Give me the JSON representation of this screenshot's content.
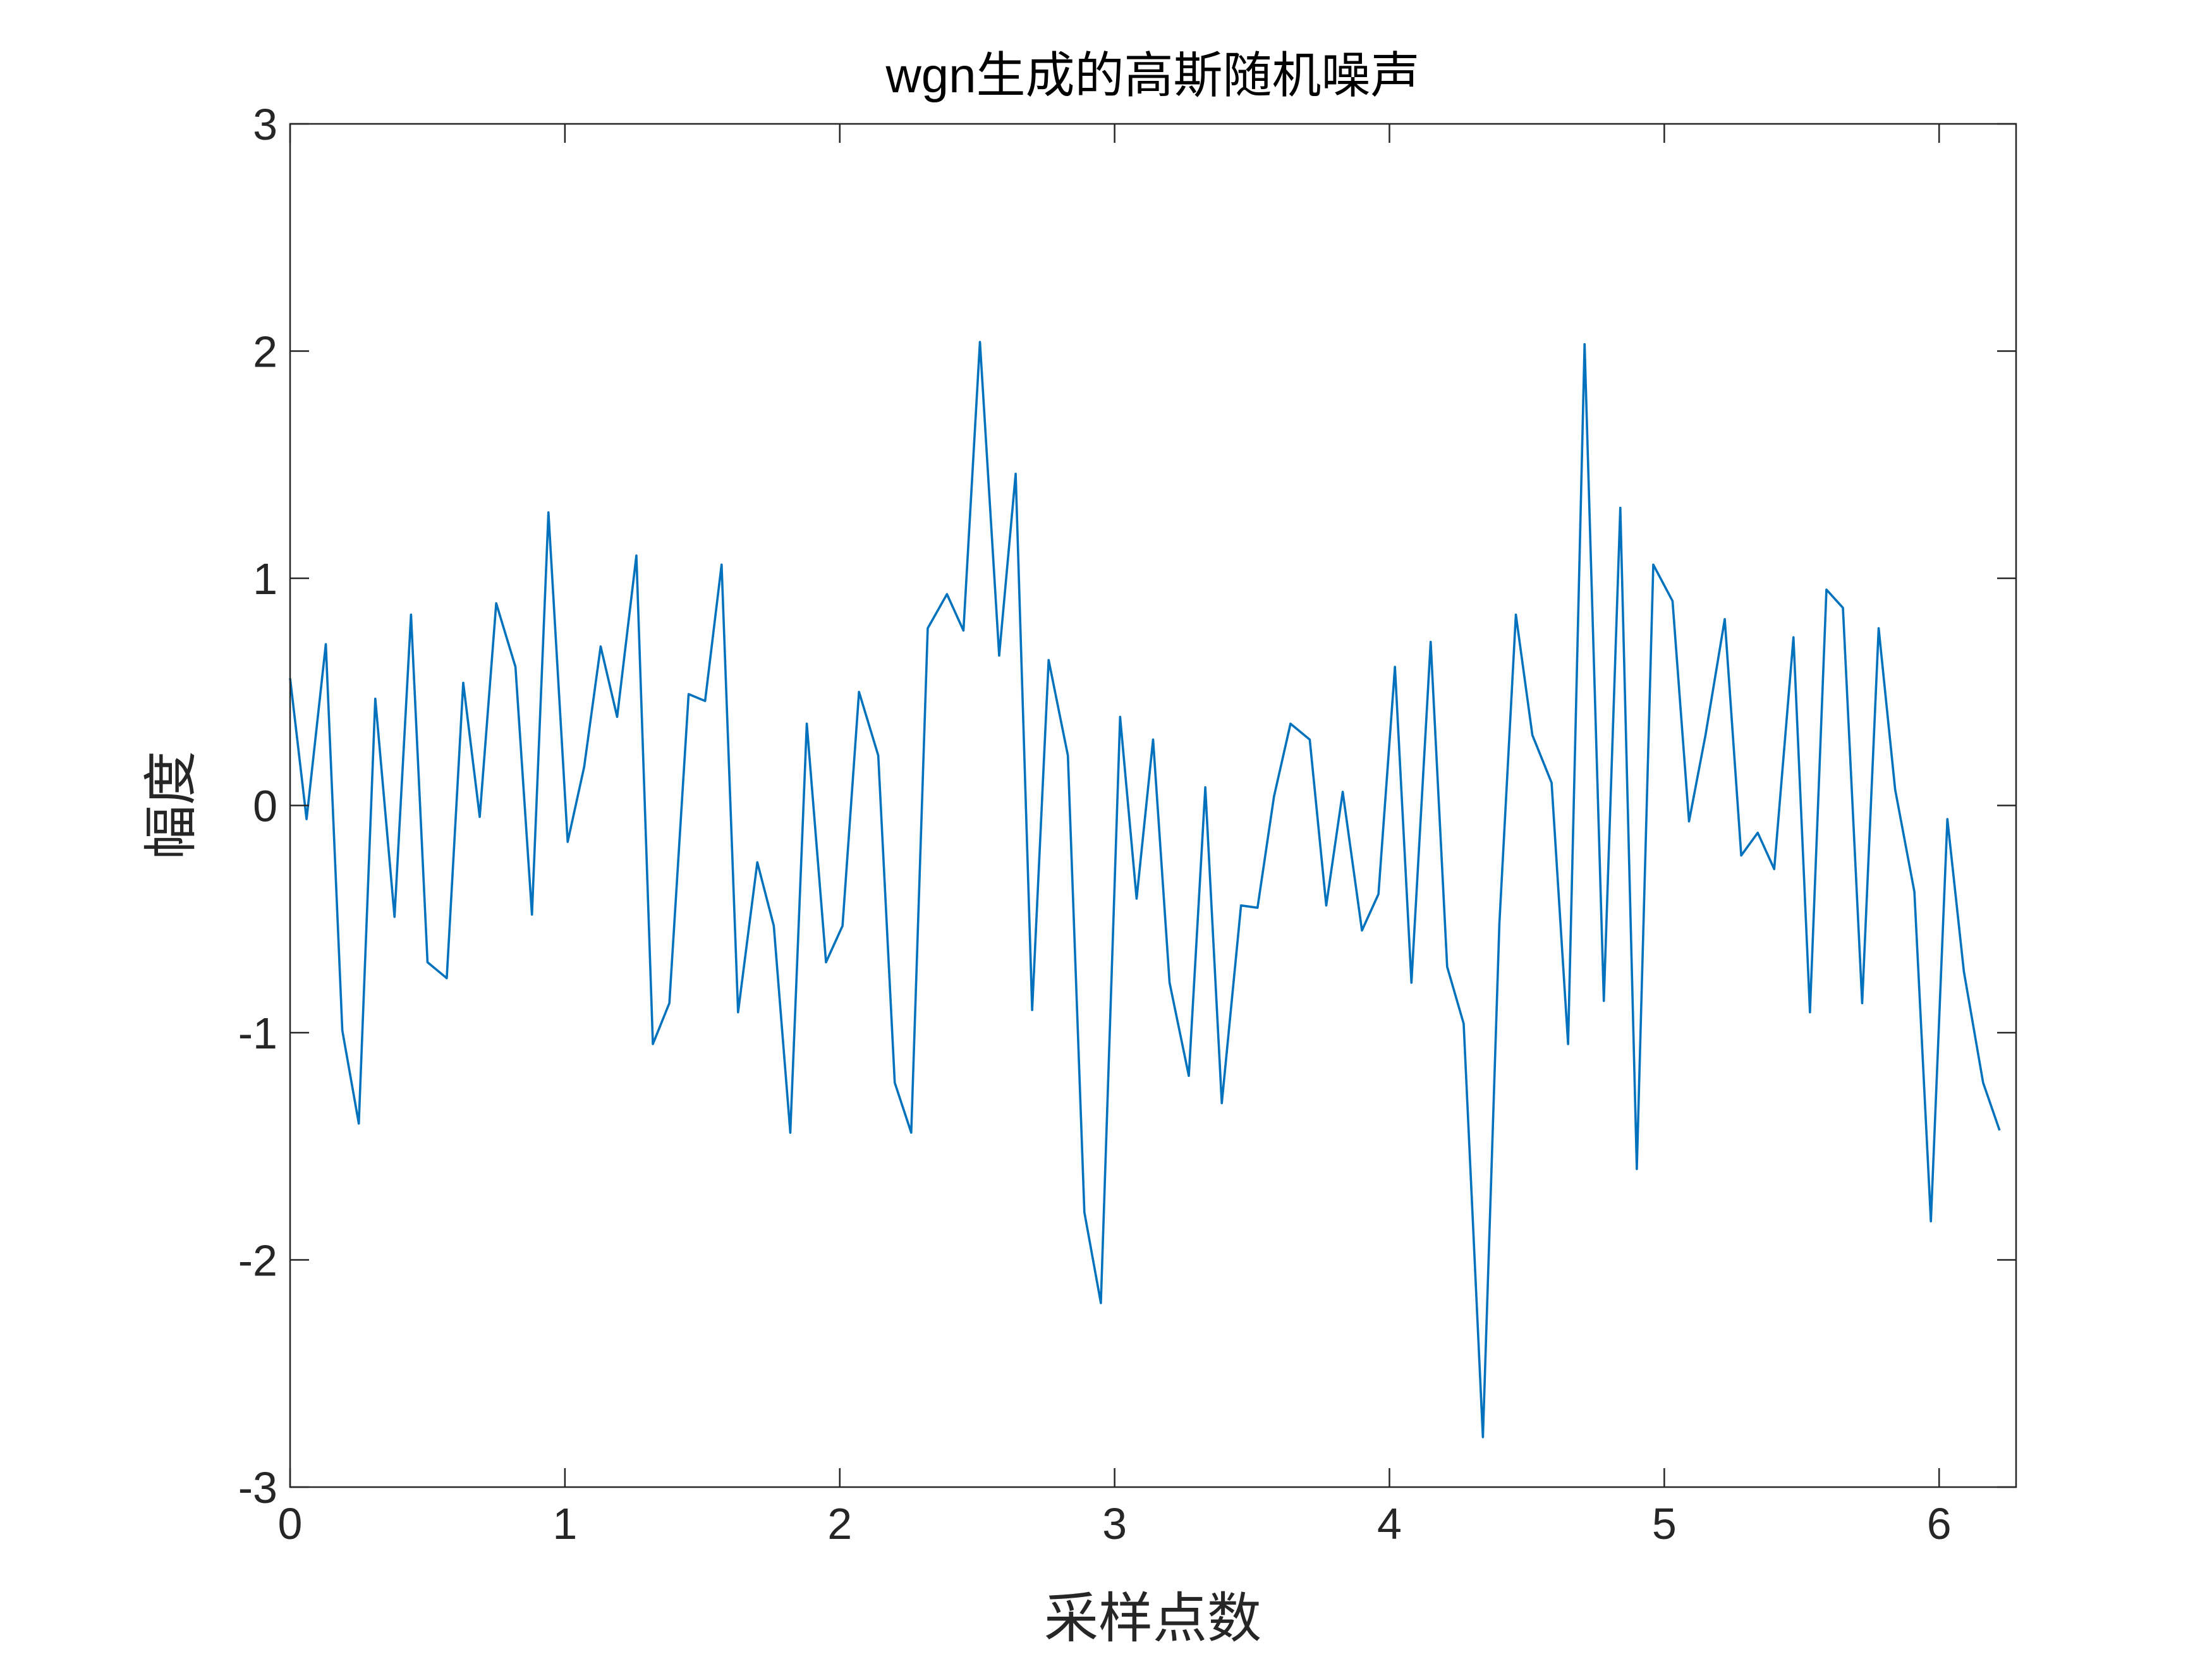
{
  "chart_data": {
    "type": "line",
    "title": "wgn生成的高斯随机噪声",
    "xlabel": "采样点数",
    "ylabel": "幅度",
    "x": [
      0,
      0.06,
      0.13,
      0.19,
      0.25,
      0.31,
      0.38,
      0.44,
      0.5,
      0.57,
      0.63,
      0.69,
      0.75,
      0.82,
      0.88,
      0.94,
      1.01,
      1.07,
      1.13,
      1.19,
      1.26,
      1.32,
      1.38,
      1.45,
      1.51,
      1.57,
      1.63,
      1.7,
      1.76,
      1.82,
      1.88,
      1.95,
      2.01,
      2.07,
      2.14,
      2.2,
      2.26,
      2.32,
      2.39,
      2.45,
      2.51,
      2.58,
      2.64,
      2.7,
      2.76,
      2.83,
      2.89,
      2.95,
      3.02,
      3.08,
      3.14,
      3.2,
      3.27,
      3.33,
      3.39,
      3.46,
      3.52,
      3.58,
      3.64,
      3.71,
      3.77,
      3.83,
      3.9,
      3.96,
      4.02,
      4.08,
      4.15,
      4.21,
      4.27,
      4.34,
      4.4,
      4.46,
      4.52,
      4.59,
      4.65,
      4.71,
      4.78,
      4.84,
      4.9,
      4.96,
      5.03,
      5.09,
      5.15,
      5.22,
      5.28,
      5.34,
      5.4,
      5.47,
      5.53,
      5.59,
      5.65,
      5.72,
      5.78,
      5.84,
      5.91,
      5.97,
      6.03,
      6.09,
      6.16,
      6.22
    ],
    "series": [
      {
        "color": "#0072bd",
        "values": [
          0.56,
          -0.06,
          0.71,
          -0.99,
          -1.4,
          0.47,
          -0.49,
          0.84,
          -0.69,
          -0.76,
          0.54,
          -0.05,
          0.89,
          0.61,
          -0.48,
          1.29,
          -0.16,
          0.17,
          0.7,
          0.39,
          1.1,
          -1.05,
          -0.87,
          0.49,
          0.46,
          1.06,
          -0.91,
          -0.25,
          -0.53,
          -1.44,
          0.36,
          -0.69,
          -0.53,
          0.5,
          0.22,
          -1.22,
          -1.44,
          0.78,
          0.93,
          0.77,
          2.04,
          0.66,
          1.46,
          -0.9,
          0.64,
          0.22,
          -1.79,
          -2.19,
          0.39,
          -0.41,
          0.29,
          -0.78,
          -1.19,
          0.08,
          -1.31,
          -0.44,
          -0.45,
          0.04,
          0.36,
          0.29,
          -0.44,
          0.06,
          -0.55,
          -0.39,
          0.61,
          -0.78,
          0.72,
          -0.71,
          -0.96,
          -2.78,
          -0.52,
          0.84,
          0.31,
          0.1,
          -1.05,
          2.03,
          -0.86,
          1.31,
          -1.6,
          1.06,
          0.9,
          -0.07,
          0.31,
          0.82,
          -0.22,
          -0.12,
          -0.28,
          0.74,
          -0.91,
          0.95,
          0.87,
          -0.87,
          0.78,
          0.07,
          -0.38,
          -1.83,
          -0.06,
          -0.73,
          -1.22,
          -1.43
        ]
      }
    ],
    "xlim": [
      0,
      6.28
    ],
    "ylim": [
      -3,
      3
    ],
    "xticks": [
      0,
      1,
      2,
      3,
      4,
      5,
      6
    ],
    "yticks": [
      -3,
      -2,
      -1,
      0,
      1,
      2,
      3
    ]
  }
}
